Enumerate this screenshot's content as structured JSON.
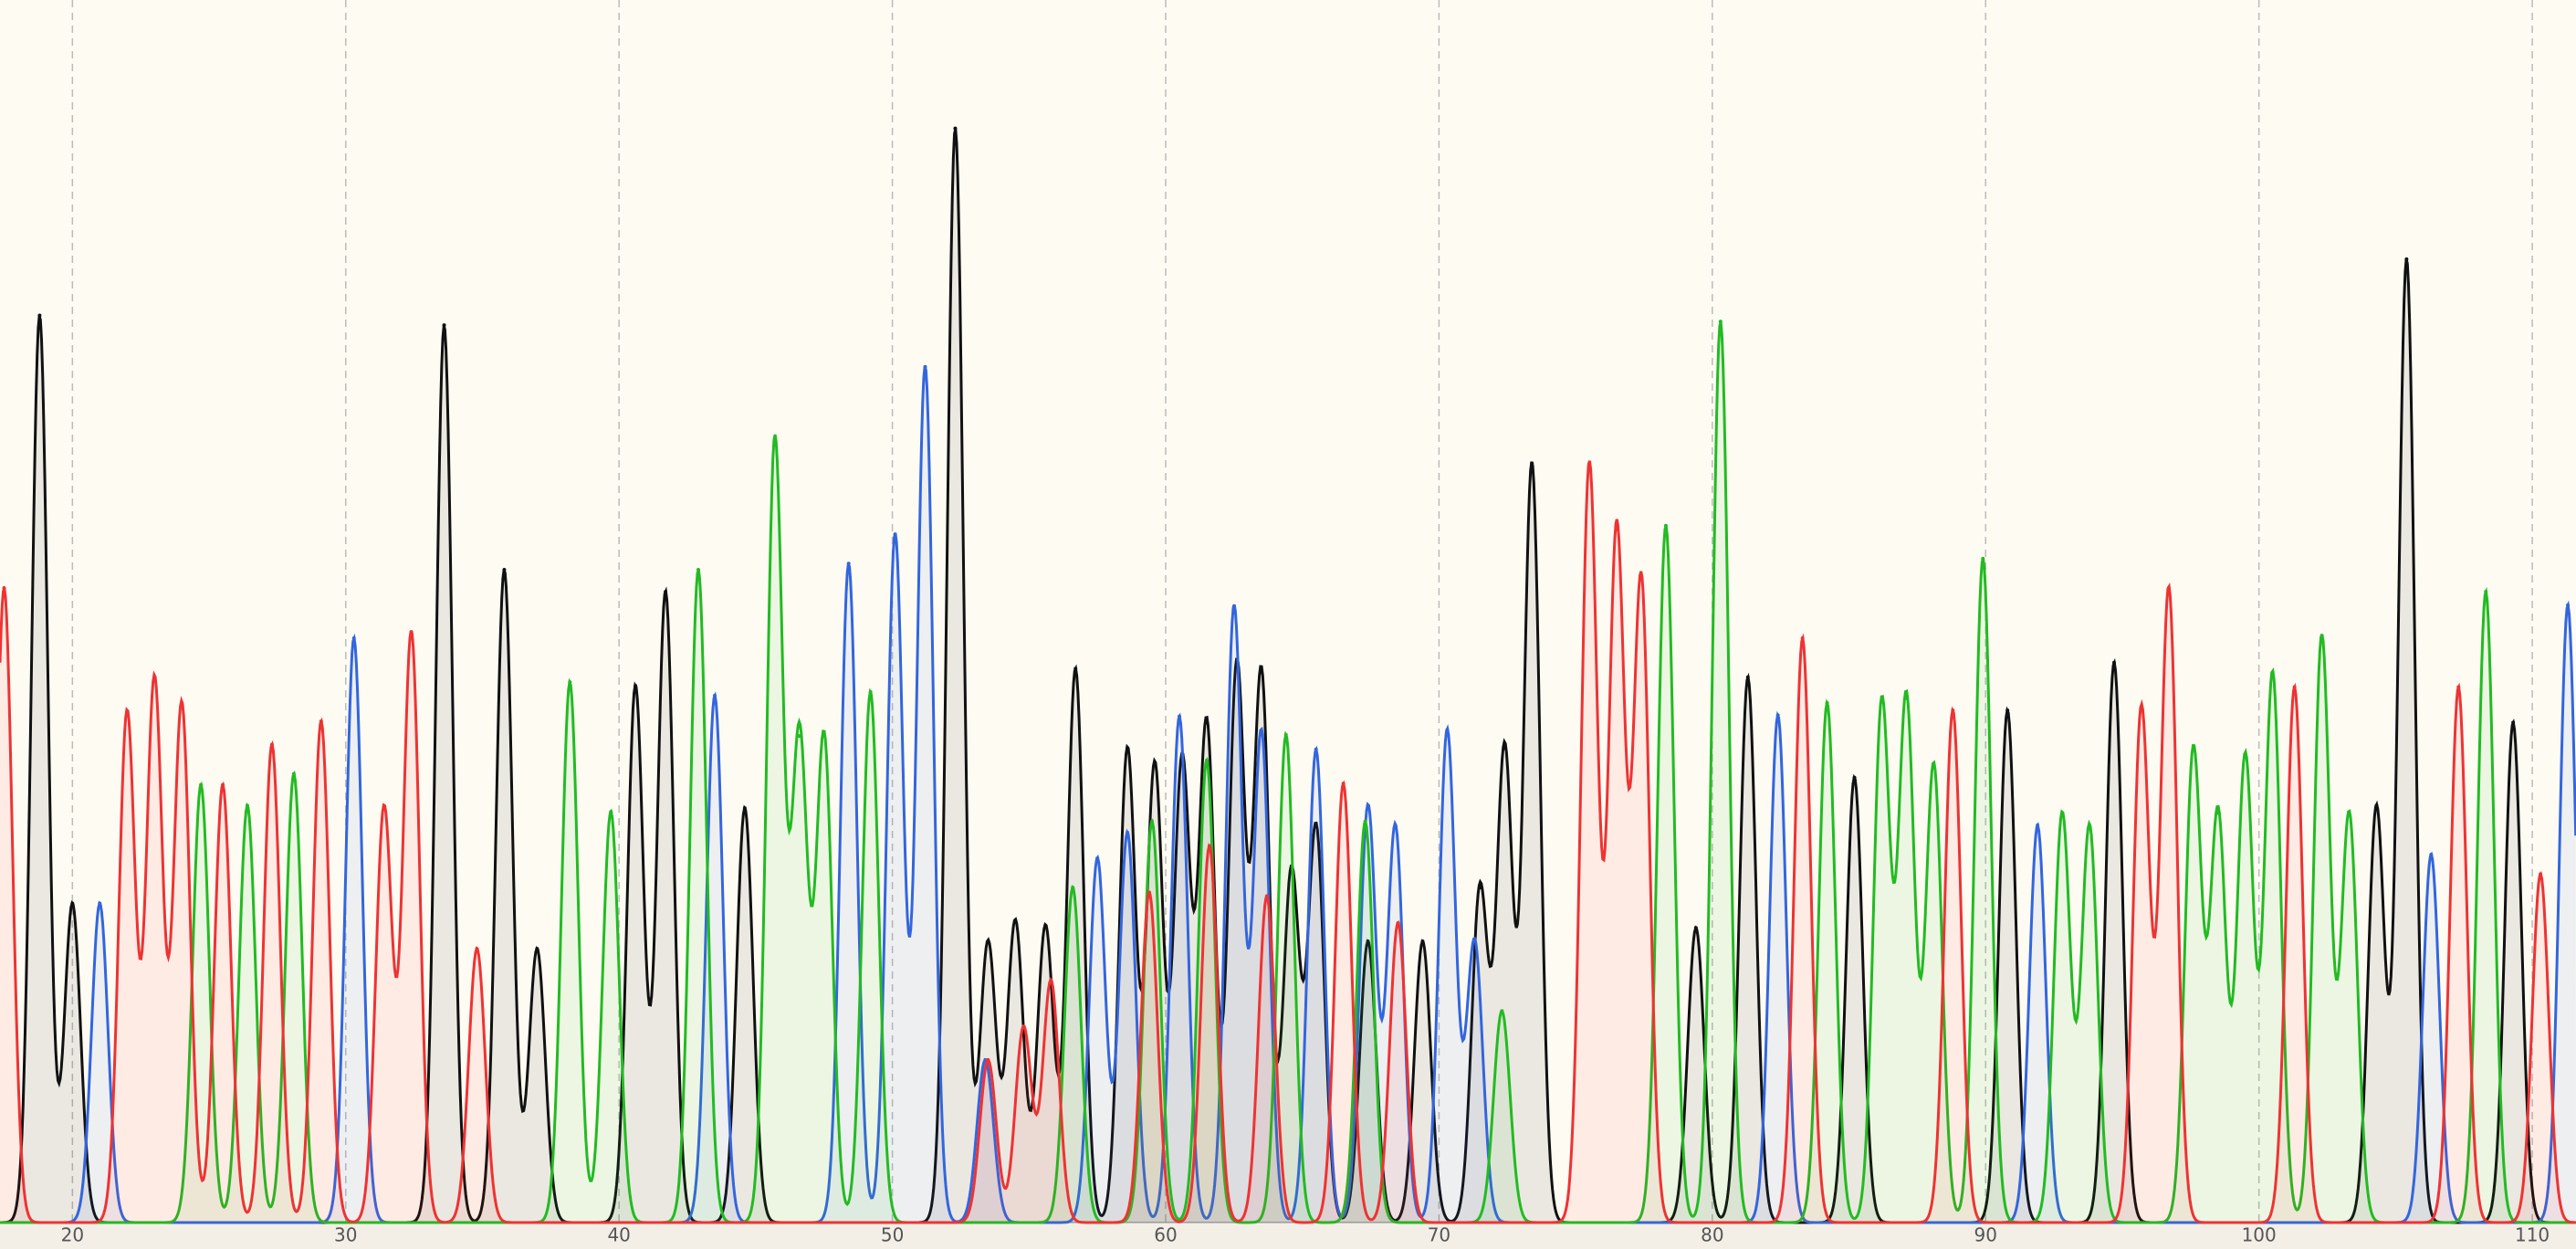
{
  "chart_data": {
    "type": "chromatogram",
    "xlim": [
      17.35,
      111.6
    ],
    "ylim": [
      0,
      1000
    ],
    "xticks": [
      20,
      30,
      40,
      50,
      60,
      70,
      80,
      90,
      100,
      110
    ],
    "grid": true,
    "series": [
      {
        "color": "#111111",
        "x": [
          18.8,
          20.0,
          33.6,
          35.8,
          37.0,
          40.6,
          41.7,
          44.6,
          52.3,
          53.5,
          54.5,
          55.6,
          56.7,
          58.6,
          59.6,
          60.6,
          61.5,
          62.6,
          63.5,
          64.6,
          65.5,
          67.4,
          69.4,
          71.5,
          72.4,
          73.4,
          79.4,
          81.3,
          85.2,
          90.8,
          94.7,
          104.3,
          105.4,
          109.3
        ],
        "values": [
          742,
          261,
          734,
          534,
          224,
          439,
          516,
          339,
          895,
          230,
          247,
          243,
          453,
          388,
          375,
          378,
          409,
          456,
          450,
          288,
          324,
          230,
          230,
          274,
          388,
          621,
          241,
          446,
          364,
          419,
          458,
          341,
          788,
          409
        ]
      },
      {
        "color": "#3366dd",
        "x": [
          21.0,
          30.3,
          43.5,
          48.4,
          50.1,
          51.2,
          53.4,
          57.5,
          58.6,
          60.5,
          62.5,
          63.5,
          65.5,
          67.4,
          68.4,
          70.3,
          71.3,
          82.4,
          91.9,
          106.3,
          111.3
        ],
        "values": [
          261,
          478,
          431,
          539,
          563,
          700,
          133,
          298,
          319,
          414,
          504,
          402,
          387,
          341,
          325,
          403,
          231,
          415,
          325,
          301,
          505
        ]
      },
      {
        "color": "#22bb22",
        "x": [
          24.7,
          26.4,
          28.1,
          38.2,
          39.7,
          42.9,
          45.7,
          46.6,
          47.5,
          49.2,
          56.6,
          59.5,
          61.5,
          64.4,
          67.3,
          72.3,
          78.3,
          80.3,
          84.2,
          86.2,
          87.1,
          88.1,
          89.9,
          92.8,
          93.8,
          97.6,
          98.5,
          99.5,
          100.5,
          102.3,
          103.3,
          108.3
        ],
        "values": [
          358,
          341,
          367,
          442,
          336,
          534,
          640,
          398,
          398,
          434,
          274,
          328,
          378,
          399,
          328,
          173,
          570,
          737,
          425,
          426,
          429,
          375,
          543,
          335,
          325,
          387,
          335,
          382,
          450,
          480,
          335,
          516
        ]
      },
      {
        "color": "#ee3333",
        "x": [
          17.5,
          22.0,
          23.0,
          24.0,
          25.5,
          27.3,
          29.1,
          31.4,
          32.4,
          34.8,
          53.5,
          54.8,
          55.8,
          59.4,
          61.6,
          63.7,
          66.5,
          68.5,
          75.5,
          76.5,
          77.4,
          83.3,
          88.8,
          95.7,
          96.7,
          101.3,
          107.3,
          110.3
        ],
        "values": [
          519,
          418,
          445,
          425,
          358,
          391,
          410,
          340,
          483,
          224,
          133,
          160,
          198,
          270,
          308,
          267,
          359,
          245,
          621,
          567,
          526,
          478,
          419,
          422,
          519,
          438,
          438,
          285
        ]
      }
    ]
  }
}
